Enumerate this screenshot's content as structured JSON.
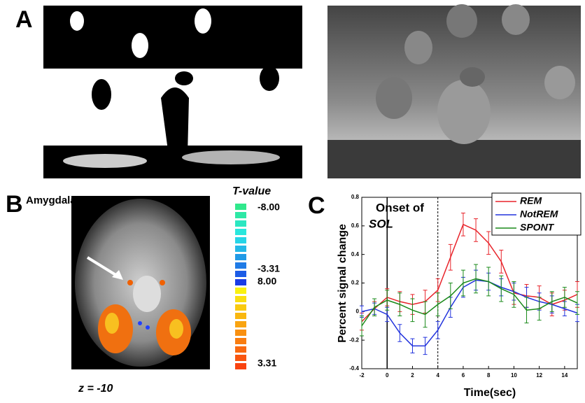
{
  "panels": {
    "a_label": "A",
    "b_label": "B",
    "c_label": "C",
    "amygdala": "Amygdala",
    "colorbar_title": "T-value",
    "colorbar_labels": [
      "-8.00",
      "-3.31",
      "8.00",
      "3.31"
    ],
    "slice": "z = -10"
  },
  "chart_data": {
    "type": "line",
    "annotation_1": "Onset of",
    "annotation_2": "SOL",
    "x_label": "Time(sec)",
    "y_label": "Percent signal change",
    "x": [
      -2,
      -1,
      0,
      1,
      2,
      3,
      4,
      5,
      6,
      7,
      8,
      9,
      10,
      11,
      12,
      13,
      14,
      15
    ],
    "xlim": [
      -2,
      15
    ],
    "xticks": [
      -2,
      0,
      2,
      4,
      6,
      8,
      10,
      12,
      14
    ],
    "ylim": [
      -0.4,
      0.8
    ],
    "yticks": [
      -0.4,
      -0.2,
      0,
      0.2,
      0.4,
      0.6,
      0.8
    ],
    "vlines": [
      0,
      4
    ],
    "legend": "upper right",
    "series": [
      {
        "name": "REM",
        "color": "#e8232a",
        "values": [
          -0.07,
          0.02,
          0.1,
          0.07,
          0.05,
          0.07,
          0.15,
          0.38,
          0.61,
          0.57,
          0.48,
          0.35,
          0.13,
          0.11,
          0.1,
          0.05,
          0.08,
          0.12
        ],
        "errors": [
          0.06,
          0.05,
          0.06,
          0.07,
          0.07,
          0.08,
          0.08,
          0.09,
          0.08,
          0.08,
          0.08,
          0.08,
          0.08,
          0.08,
          0.08,
          0.08,
          0.07,
          0.09
        ]
      },
      {
        "name": "NotREM",
        "color": "#2233dd",
        "values": [
          0,
          0.02,
          -0.02,
          -0.15,
          -0.24,
          -0.24,
          -0.13,
          0.03,
          0.17,
          0.22,
          0.21,
          0.17,
          0.14,
          0.1,
          0.07,
          0.05,
          0.02,
          -0.01
        ],
        "errors": [
          0.04,
          0.04,
          0.05,
          0.06,
          0.05,
          0.06,
          0.06,
          0.07,
          0.07,
          0.07,
          0.06,
          0.06,
          0.06,
          0.07,
          0.06,
          0.06,
          0.05,
          0.06
        ]
      },
      {
        "name": "SPONT",
        "color": "#1a8a1a",
        "values": [
          -0.1,
          0.03,
          0.08,
          0.05,
          0.01,
          -0.02,
          0.05,
          0.11,
          0.2,
          0.23,
          0.21,
          0.16,
          0.12,
          0.01,
          0.02,
          0.07,
          0.1,
          0.06
        ],
        "errors": [
          0.07,
          0.06,
          0.07,
          0.08,
          0.08,
          0.09,
          0.08,
          0.09,
          0.09,
          0.1,
          0.1,
          0.09,
          0.09,
          0.09,
          0.08,
          0.07,
          0.07,
          0.08
        ]
      }
    ]
  }
}
